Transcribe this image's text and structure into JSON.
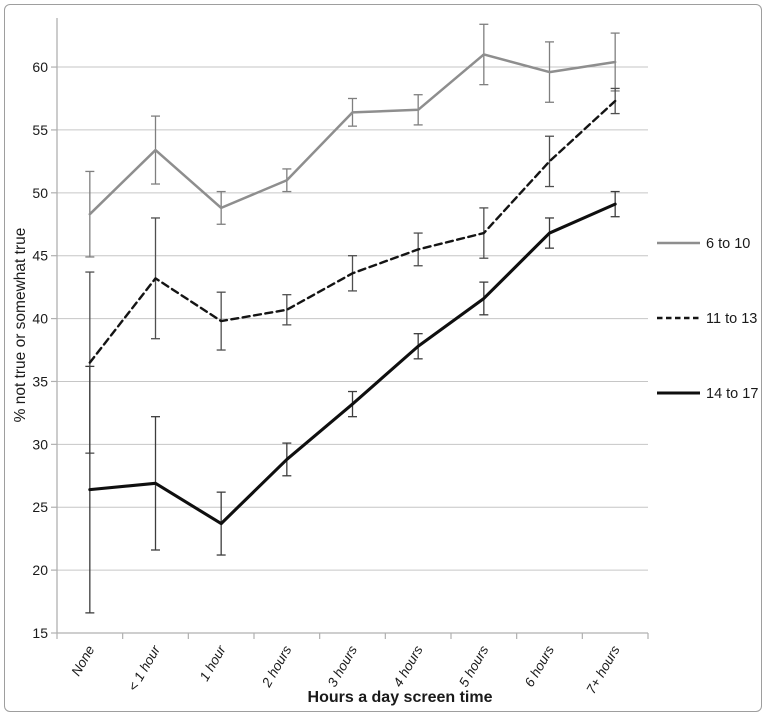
{
  "figure": {
    "background": "#ffffff",
    "border_color": "#9e9e9e",
    "text_color": "#1a1a1a",
    "gridline_color": "#c6c6c6",
    "axis_line_color": "#b0b0b0"
  },
  "chart_data": {
    "type": "line",
    "title": "",
    "xlabel": "Hours a day screen time",
    "ylabel": "% not true or somewhat true",
    "categories": [
      "None",
      "< 1 hour",
      "1 hour",
      "2 hours",
      "3 hours",
      "4 hours",
      "5 hours",
      "6 hours",
      "7+ hours"
    ],
    "ylim": [
      15,
      63.9
    ],
    "yticks": [
      15,
      20,
      25,
      30,
      35,
      40,
      45,
      50,
      55,
      60
    ],
    "grid": true,
    "error_bars": true,
    "legend_position": "right",
    "series": [
      {
        "name": "6 to 10",
        "line_style": "solid",
        "color": "#8e8e8e",
        "line_width": 2.5,
        "error_color": "#7f7f7f",
        "values": [
          48.3,
          53.4,
          48.8,
          51.0,
          56.4,
          56.6,
          61.0,
          59.6,
          60.4
        ],
        "error": [
          3.4,
          2.7,
          1.3,
          0.9,
          1.1,
          1.2,
          2.4,
          2.4,
          2.3
        ]
      },
      {
        "name": "11 to 13",
        "line_style": "dashed",
        "color": "#141414",
        "line_width": 2.4,
        "error_color": "#4f4f4f",
        "values": [
          36.5,
          43.2,
          39.8,
          40.7,
          43.6,
          45.5,
          46.8,
          52.5,
          57.3
        ],
        "error": [
          7.2,
          4.8,
          2.3,
          1.2,
          1.4,
          1.3,
          2.0,
          2.0,
          1.0
        ]
      },
      {
        "name": "14 to 17",
        "line_style": "solid",
        "color": "#0f0f0f",
        "line_width": 3.1,
        "error_color": "#3d3d3d",
        "values": [
          26.4,
          26.9,
          23.7,
          28.8,
          33.2,
          37.8,
          41.6,
          46.8,
          49.1
        ],
        "error": [
          9.8,
          5.3,
          2.5,
          1.3,
          1.0,
          1.0,
          1.3,
          1.2,
          1.0
        ]
      }
    ]
  }
}
